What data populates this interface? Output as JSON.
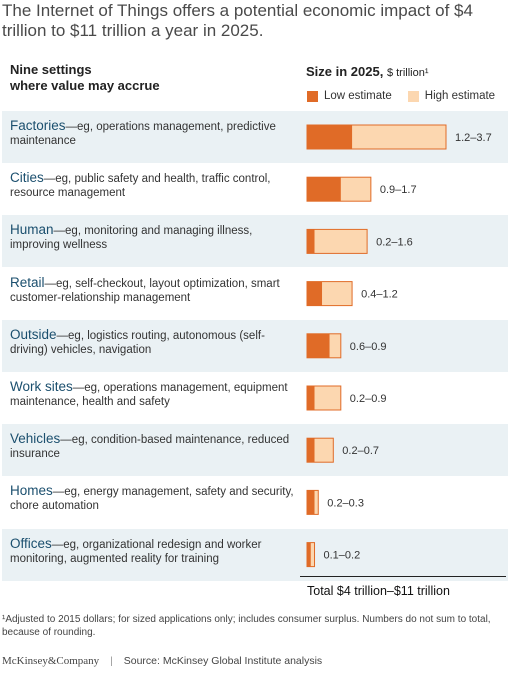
{
  "title": "The Internet of Things offers a potential economic impact of $4 trillion to $11 trillion a year in 2025.",
  "left_header": "Nine settings\nwhere value may accrue",
  "right_header": {
    "main": "Size in 2025,",
    "unit": "$ trillion¹"
  },
  "legend": {
    "low": "Low estimate",
    "high": "High estimate"
  },
  "colors": {
    "low": "#e06b27",
    "high": "#fcd7b0",
    "high_border": "#e06b27",
    "shade": "#eaf1f4",
    "name": "#1b4f6e"
  },
  "rows": [
    {
      "name": "Factories",
      "desc": "—eg, operations management, predictive maintenance",
      "range_label": "1.2–3.7"
    },
    {
      "name": "Cities",
      "desc": "—eg, public safety and health, traffic control, resource management",
      "range_label": "0.9–1.7"
    },
    {
      "name": "Human",
      "desc": "—eg, monitoring and managing illness, improving wellness",
      "range_label": "0.2–1.6"
    },
    {
      "name": "Retail",
      "desc": "—eg, self-checkout, layout optimization, smart customer-relationship management",
      "range_label": "0.4–1.2"
    },
    {
      "name": "Outside",
      "desc": "—eg, logistics routing, autonomous (self-driving) vehicles, navigation",
      "range_label": "0.6–0.9"
    },
    {
      "name": "Work sites",
      "desc": "—eg, operations management, equipment maintenance, health and safety",
      "range_label": "0.2–0.9"
    },
    {
      "name": "Vehicles",
      "desc": "—eg, condition-based maintenance, reduced insurance",
      "range_label": "0.2–0.7"
    },
    {
      "name": "Homes",
      "desc": "—eg, energy management, safety and security, chore automation",
      "range_label": "0.2–0.3"
    },
    {
      "name": "Offices",
      "desc": "—eg, organizational redesign and worker monitoring, augmented reality for training",
      "range_label": "0.1–0.2"
    }
  ],
  "total": "Total  $4 trillion–$11 trillion",
  "footnote": "¹Adjusted to 2015 dollars; for sized applications only; includes consumer surplus. Numbers do not sum to total, because of rounding.",
  "footer": {
    "brand": "McKinsey&Company",
    "separator": "|",
    "source": "Source: McKinsey Global Institute analysis"
  },
  "chart_data": {
    "type": "bar",
    "categories": [
      "Factories",
      "Cities",
      "Human",
      "Retail",
      "Outside",
      "Work sites",
      "Vehicles",
      "Homes",
      "Offices"
    ],
    "series": [
      {
        "name": "Low estimate",
        "values": [
          1.2,
          0.9,
          0.2,
          0.4,
          0.6,
          0.2,
          0.2,
          0.2,
          0.1
        ]
      },
      {
        "name": "High estimate",
        "values": [
          3.7,
          1.7,
          1.6,
          1.2,
          0.9,
          0.9,
          0.7,
          0.3,
          0.2
        ]
      }
    ],
    "title": "The Internet of Things offers a potential economic impact of $4 trillion to $11 trillion a year in 2025.",
    "xlabel": "Size in 2025, $ trillion",
    "ylabel": "",
    "xlim": [
      0,
      3.7
    ],
    "grid": false,
    "legend_position": "top"
  }
}
